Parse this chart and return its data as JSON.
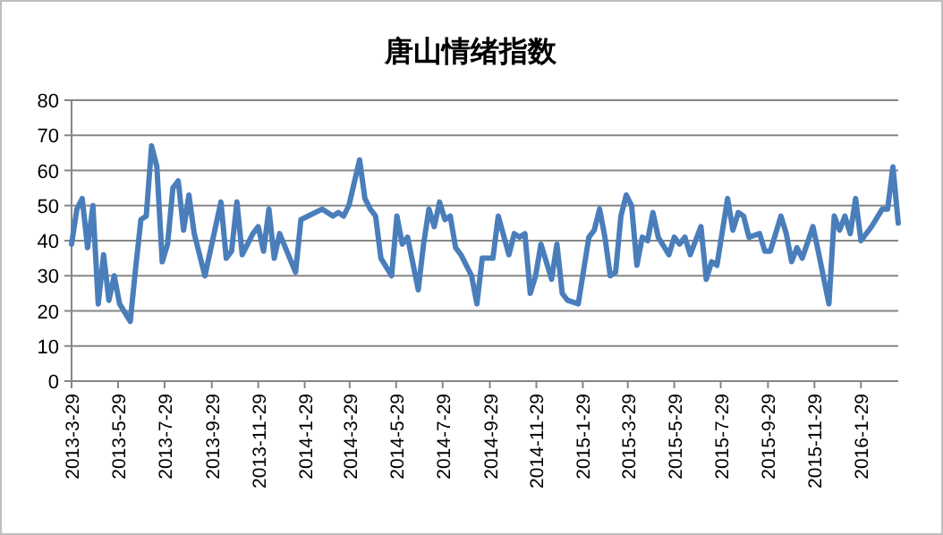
{
  "chart_data": {
    "type": "line",
    "title": "唐山情绪指数",
    "color": "#4a7ebb",
    "grid": "y",
    "xlim": [
      "2013-03-29",
      "2016-03-18"
    ],
    "ylim": [
      0,
      80
    ],
    "yticks": [
      0,
      10,
      20,
      30,
      40,
      50,
      60,
      70,
      80
    ],
    "xticks": [
      {
        "value": "2013-03-29",
        "label": "2013-3-29"
      },
      {
        "value": "2013-05-29",
        "label": "2013-5-29"
      },
      {
        "value": "2013-07-29",
        "label": "2013-7-29"
      },
      {
        "value": "2013-09-29",
        "label": "2013-9-29"
      },
      {
        "value": "2013-11-29",
        "label": "2013-11-29"
      },
      {
        "value": "2014-01-29",
        "label": "2014-1-29"
      },
      {
        "value": "2014-03-29",
        "label": "2014-3-29"
      },
      {
        "value": "2014-05-29",
        "label": "2014-5-29"
      },
      {
        "value": "2014-07-29",
        "label": "2014-7-29"
      },
      {
        "value": "2014-09-29",
        "label": "2014-9-29"
      },
      {
        "value": "2014-11-29",
        "label": "2014-11-29"
      },
      {
        "value": "2015-01-29",
        "label": "2015-1-29"
      },
      {
        "value": "2015-03-29",
        "label": "2015-3-29"
      },
      {
        "value": "2015-05-29",
        "label": "2015-5-29"
      },
      {
        "value": "2015-07-29",
        "label": "2015-7-29"
      },
      {
        "value": "2015-09-29",
        "label": "2015-9-29"
      },
      {
        "value": "2015-11-29",
        "label": "2015-11-29"
      },
      {
        "value": "2016-01-29",
        "label": "2016-1-29"
      }
    ],
    "x": [
      "2013-03-29",
      "2013-04-05",
      "2013-04-12",
      "2013-04-19",
      "2013-04-26",
      "2013-05-03",
      "2013-05-10",
      "2013-05-17",
      "2013-05-24",
      "2013-05-31",
      "2013-06-14",
      "2013-06-21",
      "2013-06-28",
      "2013-07-05",
      "2013-07-12",
      "2013-07-19",
      "2013-07-26",
      "2013-08-02",
      "2013-08-09",
      "2013-08-16",
      "2013-08-23",
      "2013-08-30",
      "2013-09-06",
      "2013-09-20",
      "2013-10-11",
      "2013-10-18",
      "2013-10-25",
      "2013-11-01",
      "2013-11-08",
      "2013-11-22",
      "2013-11-29",
      "2013-12-06",
      "2013-12-13",
      "2013-12-20",
      "2013-12-27",
      "2014-01-17",
      "2014-01-24",
      "2014-02-21",
      "2014-03-07",
      "2014-03-14",
      "2014-03-21",
      "2014-03-28",
      "2014-04-11",
      "2014-04-18",
      "2014-04-25",
      "2014-05-02",
      "2014-05-09",
      "2014-05-23",
      "2014-05-30",
      "2014-06-06",
      "2014-06-13",
      "2014-06-27",
      "2014-07-04",
      "2014-07-11",
      "2014-07-18",
      "2014-07-25",
      "2014-08-01",
      "2014-08-08",
      "2014-08-15",
      "2014-08-22",
      "2014-09-05",
      "2014-09-12",
      "2014-09-19",
      "2014-10-03",
      "2014-10-10",
      "2014-10-24",
      "2014-10-31",
      "2014-11-07",
      "2014-11-14",
      "2014-11-21",
      "2014-11-28",
      "2014-12-05",
      "2014-12-19",
      "2014-12-26",
      "2015-01-02",
      "2015-01-09",
      "2015-01-23",
      "2015-02-06",
      "2015-02-13",
      "2015-02-20",
      "2015-02-27",
      "2015-03-06",
      "2015-03-13",
      "2015-03-20",
      "2015-03-27",
      "2015-04-03",
      "2015-04-10",
      "2015-04-17",
      "2015-04-24",
      "2015-05-01",
      "2015-05-08",
      "2015-05-22",
      "2015-05-29",
      "2015-06-05",
      "2015-06-12",
      "2015-06-19",
      "2015-07-03",
      "2015-07-10",
      "2015-07-17",
      "2015-07-24",
      "2015-08-07",
      "2015-08-14",
      "2015-08-21",
      "2015-08-28",
      "2015-09-04",
      "2015-09-18",
      "2015-09-25",
      "2015-10-02",
      "2015-10-16",
      "2015-10-23",
      "2015-10-30",
      "2015-11-06",
      "2015-11-13",
      "2015-11-27",
      "2015-12-04",
      "2015-12-18",
      "2015-12-25",
      "2016-01-01",
      "2016-01-08",
      "2016-01-15",
      "2016-01-22",
      "2016-01-29",
      "2016-02-12",
      "2016-02-26",
      "2016-03-04",
      "2016-03-11",
      "2016-03-18"
    ],
    "values": [
      39,
      49,
      52,
      38,
      50,
      22,
      36,
      23,
      30,
      22,
      17,
      32,
      46,
      47,
      67,
      61,
      34,
      39,
      55,
      57,
      43,
      53,
      42,
      30,
      51,
      35,
      37,
      51,
      36,
      42,
      44,
      37,
      49,
      35,
      42,
      31,
      46,
      49,
      47,
      48,
      47,
      50,
      63,
      52,
      49,
      47,
      35,
      30,
      47,
      39,
      41,
      26,
      39,
      49,
      44,
      51,
      46,
      47,
      38,
      36,
      30,
      22,
      35,
      35,
      47,
      36,
      42,
      41,
      42,
      25,
      30,
      39,
      29,
      39,
      25,
      23,
      22,
      41,
      43,
      49,
      41,
      30,
      31,
      47,
      53,
      50,
      33,
      41,
      40,
      48,
      41,
      36,
      41,
      39,
      41,
      36,
      44,
      29,
      34,
      33,
      52,
      43,
      48,
      47,
      41,
      42,
      37,
      37,
      47,
      42,
      34,
      38,
      35,
      44,
      37,
      22,
      47,
      43,
      47,
      42,
      52,
      40,
      44,
      49,
      49,
      61,
      45
    ]
  }
}
